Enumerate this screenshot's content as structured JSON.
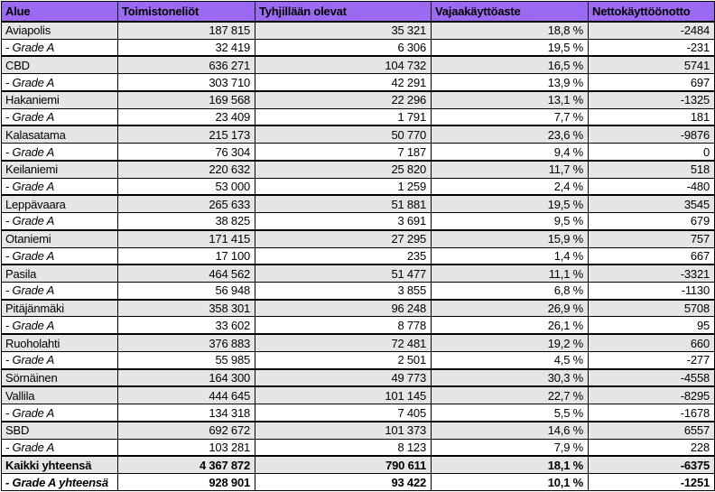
{
  "colors": {
    "header_bg": "#9C69F2",
    "area_row_bg": "#E5E5E5",
    "grade_row_bg": "#FFFFFF",
    "border": "#000000",
    "text": "#000000"
  },
  "chart_data": {
    "type": "table",
    "title": "",
    "columns": [
      "Alue",
      "Toimistoneliöt",
      "Tyhjillään olevat",
      "Vajaakäyttöaste",
      "Nettokäyttöönotto"
    ],
    "rows": [
      {
        "style": "area",
        "cells": [
          "Aviapolis",
          "187 815",
          "35 321",
          "18,8 %",
          "-2484"
        ]
      },
      {
        "style": "gradeA",
        "cells": [
          "- Grade A",
          "32 419",
          "6 306",
          "19,5 %",
          "-231"
        ]
      },
      {
        "style": "area",
        "cells": [
          "CBD",
          "636 271",
          "104 732",
          "16,5 %",
          "5741"
        ]
      },
      {
        "style": "gradeA",
        "cells": [
          "- Grade A",
          "303 710",
          "42 291",
          "13,9 %",
          "697"
        ]
      },
      {
        "style": "area",
        "cells": [
          "Hakaniemi",
          "169 568",
          "22 296",
          "13,1 %",
          "-1325"
        ]
      },
      {
        "style": "gradeA",
        "cells": [
          "- Grade A",
          "23 409",
          "1 791",
          "7,7 %",
          "181"
        ]
      },
      {
        "style": "area",
        "cells": [
          "Kalasatama",
          "215 173",
          "50 770",
          "23,6 %",
          "-9876"
        ]
      },
      {
        "style": "gradeA",
        "cells": [
          "- Grade A",
          "76 304",
          "7 187",
          "9,4 %",
          "0"
        ]
      },
      {
        "style": "area",
        "cells": [
          "Keilaniemi",
          "220 632",
          "25 820",
          "11,7 %",
          "518"
        ]
      },
      {
        "style": "gradeA",
        "cells": [
          "- Grade A",
          "53 000",
          "1 259",
          "2,4 %",
          "-480"
        ]
      },
      {
        "style": "area",
        "cells": [
          "Leppävaara",
          "265 633",
          "51 881",
          "19,5 %",
          "3545"
        ]
      },
      {
        "style": "gradeA",
        "cells": [
          "- Grade A",
          "38 825",
          "3 691",
          "9,5 %",
          "679"
        ]
      },
      {
        "style": "area",
        "cells": [
          "Otaniemi",
          "171 415",
          "27 295",
          "15,9 %",
          "757"
        ]
      },
      {
        "style": "gradeA",
        "cells": [
          "- Grade A",
          "17 100",
          "235",
          "1,4 %",
          "667"
        ]
      },
      {
        "style": "area",
        "cells": [
          "Pasila",
          "464 562",
          "51 477",
          "11,1 %",
          "-3321"
        ]
      },
      {
        "style": "gradeA",
        "cells": [
          "- Grade A",
          "56 948",
          "3 855",
          "6,8 %",
          "-1130"
        ]
      },
      {
        "style": "area",
        "cells": [
          "Pitäjänmäki",
          "358 301",
          "96 248",
          "26,9 %",
          "5708"
        ]
      },
      {
        "style": "gradeA",
        "cells": [
          "- Grade A",
          "33 602",
          "8 778",
          "26,1 %",
          "95"
        ]
      },
      {
        "style": "area",
        "cells": [
          "Ruoholahti",
          "376 883",
          "72 481",
          "19,2 %",
          "660"
        ]
      },
      {
        "style": "gradeA",
        "cells": [
          "- Grade A",
          "55 985",
          "2 501",
          "4,5 %",
          "-277"
        ]
      },
      {
        "style": "area",
        "cells": [
          "Sörnäinen",
          "164 300",
          "49 773",
          "30,3 %",
          "-4558"
        ]
      },
      {
        "style": "area",
        "cells": [
          "Vallila",
          "444 645",
          "101 145",
          "22,7 %",
          "-8295"
        ]
      },
      {
        "style": "gradeA",
        "cells": [
          "- Grade A",
          "134 318",
          "7 405",
          "5,5 %",
          "-1678"
        ]
      },
      {
        "style": "area",
        "cells": [
          "SBD",
          "692 672",
          "101 373",
          "14,6 %",
          "6557"
        ]
      },
      {
        "style": "gradeA",
        "cells": [
          "- Grade A",
          "103 281",
          "8 123",
          "7,9 %",
          "228"
        ]
      },
      {
        "style": "total",
        "cells": [
          "Kaikki yhteensä",
          "4 367 872",
          "790 611",
          "18,1 %",
          "-6375"
        ]
      },
      {
        "style": "totalGradeA",
        "cells": [
          "- Grade A yhteensä",
          "928 901",
          "93 422",
          "10,1 %",
          "-1251"
        ]
      }
    ]
  }
}
